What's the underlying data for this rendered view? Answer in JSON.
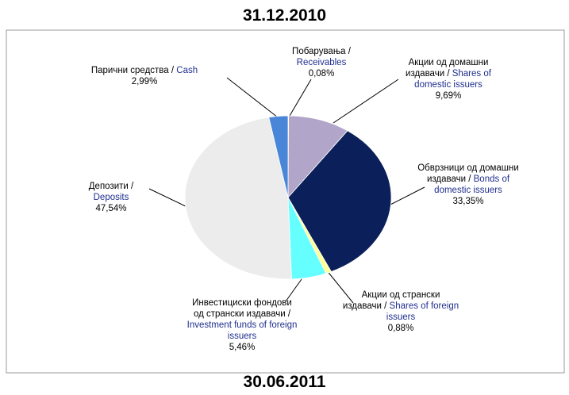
{
  "chart_data": {
    "type": "pie",
    "title": "31.12.2010",
    "footer": "30.06.2011",
    "labels": [
      {
        "local": "Побарувања /",
        "english": "Receivables"
      },
      {
        "local": "Акции од домашни издавачи /",
        "english": "Shares of domestic issuers"
      },
      {
        "local": "Обврзници од домашни издавачи /",
        "english": "Bonds of domestic issuers"
      },
      {
        "local": "Акции од странски издавачи /",
        "english": "Shares of foreign issuers"
      },
      {
        "local": "Инвестициски фондови од странски издавачи /",
        "english": "Investment funds of foreign issuers"
      },
      {
        "local": "Депозити /",
        "english": "Deposits"
      },
      {
        "local": "Парични средства /",
        "english": "Cash"
      }
    ],
    "values": [
      0.08,
      9.69,
      33.35,
      0.88,
      5.46,
      47.54,
      2.99
    ],
    "value_labels": [
      "0,08%",
      "9,69%",
      "33,35%",
      "0,88%",
      "5,46%",
      "47,54%",
      "2,99%"
    ],
    "colors": [
      "#c9c6e6",
      "#b1a5c9",
      "#0b1f5a",
      "#ffff99",
      "#66ffff",
      "#ececec",
      "#4a86d8"
    ]
  }
}
